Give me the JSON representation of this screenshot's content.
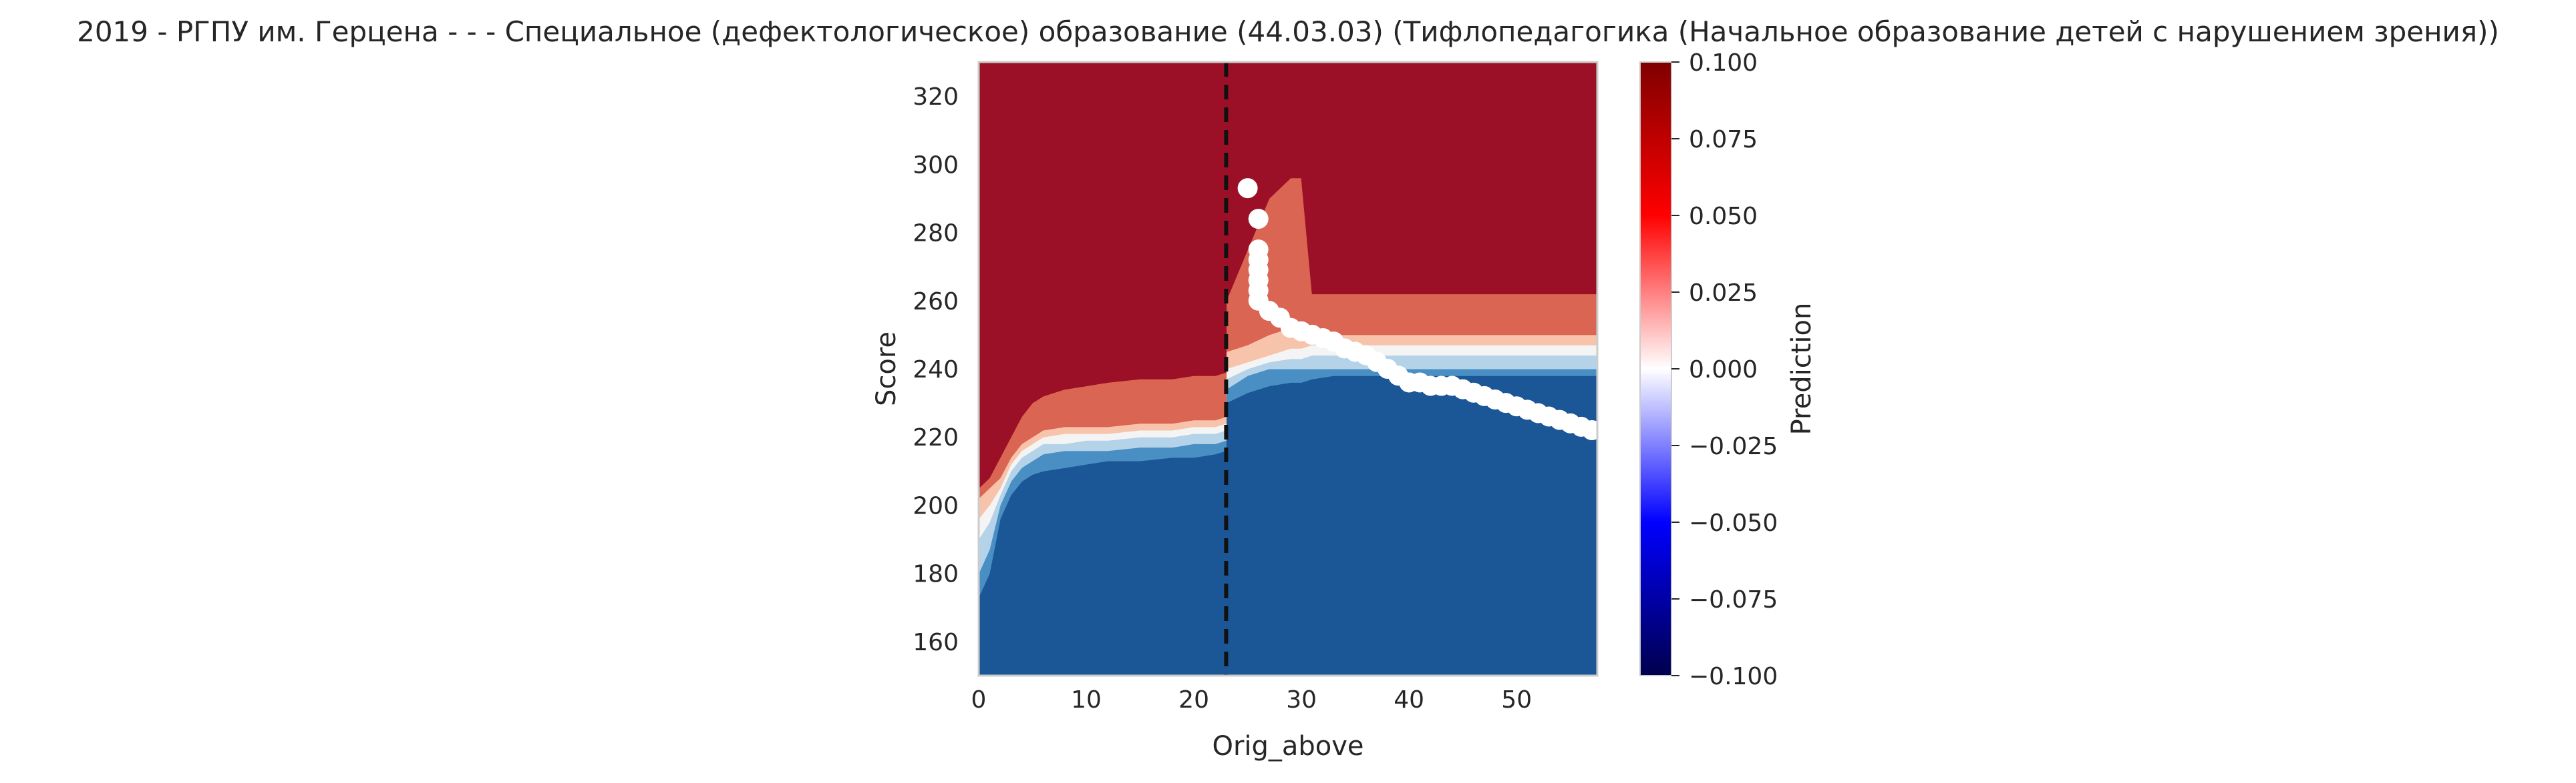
{
  "chart_data": {
    "type": "heatmap",
    "title": "2019 - РГПУ им. Герцена - - - Специальное (дефектологическое) образование (44.03.03) (Тифлопедагогика (Начальное образование детей с нарушением зрения))",
    "xlabel": "Orig_above",
    "ylabel": "Score",
    "xlim": [
      0,
      57.5
    ],
    "ylim": [
      150,
      330
    ],
    "x_ticks": [
      "0",
      "10",
      "20",
      "30",
      "40",
      "50"
    ],
    "y_ticks": [
      "160",
      "180",
      "200",
      "220",
      "240",
      "260",
      "280",
      "300",
      "320"
    ],
    "grid": false,
    "vline": {
      "x": 23,
      "style": "dashed",
      "color": "#111111"
    },
    "colorbar": {
      "label": "Prediction",
      "range": [
        -0.1,
        0.1
      ],
      "ticks": [
        "0.100",
        "0.075",
        "0.050",
        "0.025",
        "0.000",
        "−0.025",
        "−0.050",
        "−0.075",
        "−0.100"
      ],
      "colormap": "seismic"
    },
    "levels": [
      {
        "value": -0.1,
        "color": "#1b5797"
      },
      {
        "value": -0.06,
        "color": "#4a8fc4"
      },
      {
        "value": -0.02,
        "color": "#b4d3e8"
      },
      {
        "value": 0.0,
        "color": "#f4f4f4"
      },
      {
        "value": 0.02,
        "color": "#f8c3ab"
      },
      {
        "value": 0.06,
        "color": "#d96552"
      },
      {
        "value": 0.1,
        "color": "#9c1027"
      }
    ],
    "boundaries": {
      "x": [
        0,
        1,
        2,
        3,
        4,
        5,
        6,
        8,
        10,
        12,
        15,
        18,
        20,
        22,
        23,
        23.01,
        25,
        27,
        29,
        30,
        31,
        33,
        35,
        37,
        40,
        45,
        50,
        55,
        57.5
      ],
      "b_deep_blue": [
        173,
        180,
        196,
        203,
        207,
        209,
        210,
        211,
        212,
        213,
        213,
        214,
        214,
        215,
        216,
        230,
        233,
        235,
        236,
        236,
        237,
        238,
        238,
        238,
        238,
        238,
        238,
        238,
        238
      ],
      "b_mid_blue": [
        180,
        187,
        200,
        207,
        211,
        213,
        215,
        216,
        216,
        216,
        217,
        217,
        218,
        218,
        219,
        234,
        238,
        240,
        240,
        240,
        240,
        240,
        240,
        240,
        240,
        240,
        240,
        240,
        240
      ],
      "b_light_blue": [
        190,
        195,
        203,
        210,
        214,
        216,
        218,
        218,
        219,
        219,
        220,
        220,
        221,
        221,
        222,
        237,
        240,
        242,
        243,
        243,
        244,
        244,
        244,
        244,
        244,
        244,
        244,
        244,
        244
      ],
      "b_white": [
        196,
        200,
        205,
        212,
        216,
        218,
        220,
        221,
        221,
        221,
        222,
        222,
        223,
        223,
        224,
        240,
        242,
        244,
        246,
        246,
        247,
        247,
        247,
        247,
        247,
        247,
        247,
        247,
        247
      ],
      "b_light_red": [
        202,
        205,
        208,
        214,
        218,
        220,
        222,
        223,
        223,
        223,
        224,
        224,
        225,
        225,
        226,
        245,
        247,
        250,
        252,
        252,
        250,
        250,
        250,
        250,
        250,
        250,
        250,
        250,
        250
      ],
      "b_mid_red": [
        205,
        208,
        214,
        220,
        226,
        230,
        232,
        234,
        235,
        236,
        237,
        237,
        238,
        238,
        239,
        260,
        275,
        290,
        296,
        296,
        262,
        262,
        262,
        262,
        262,
        262,
        262,
        262,
        262
      ]
    },
    "points": [
      [
        25,
        293
      ],
      [
        26,
        284
      ],
      [
        26,
        275
      ],
      [
        26,
        272
      ],
      [
        26,
        269
      ],
      [
        26,
        266
      ],
      [
        26,
        263
      ],
      [
        26,
        260
      ],
      [
        27,
        257
      ],
      [
        28,
        255
      ],
      [
        29,
        252
      ],
      [
        30,
        251
      ],
      [
        31,
        250
      ],
      [
        32,
        249
      ],
      [
        33,
        248
      ],
      [
        34,
        246
      ],
      [
        35,
        245
      ],
      [
        36,
        244
      ],
      [
        37,
        242
      ],
      [
        38,
        240
      ],
      [
        39,
        238
      ],
      [
        40,
        236
      ],
      [
        41,
        236
      ],
      [
        42,
        235
      ],
      [
        43,
        235
      ],
      [
        44,
        235
      ],
      [
        45,
        234
      ],
      [
        46,
        233
      ],
      [
        47,
        232
      ],
      [
        48,
        231
      ],
      [
        49,
        230
      ],
      [
        50,
        229
      ],
      [
        51,
        228
      ],
      [
        52,
        227
      ],
      [
        53,
        226
      ],
      [
        54,
        225
      ],
      [
        55,
        224
      ],
      [
        56,
        223
      ],
      [
        57,
        222
      ]
    ]
  }
}
